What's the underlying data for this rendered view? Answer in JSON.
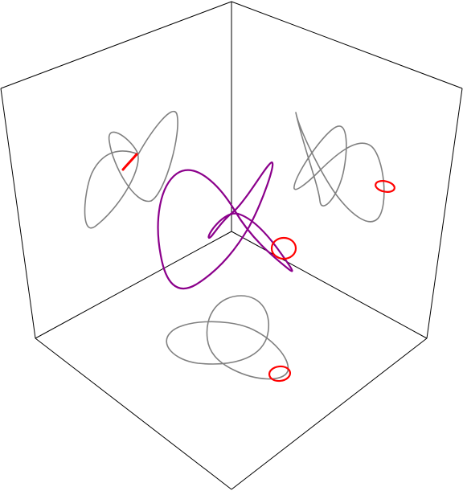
{
  "colors": {
    "background": "#ffffff",
    "box_edges": "#000000",
    "main_curve": "#8b008b",
    "projection_curve": "#808080",
    "highlight_loop": "#ff0000"
  },
  "figure": {
    "kind": "3D space curve inside an open box with its shadows projected onto the three back faces"
  }
}
